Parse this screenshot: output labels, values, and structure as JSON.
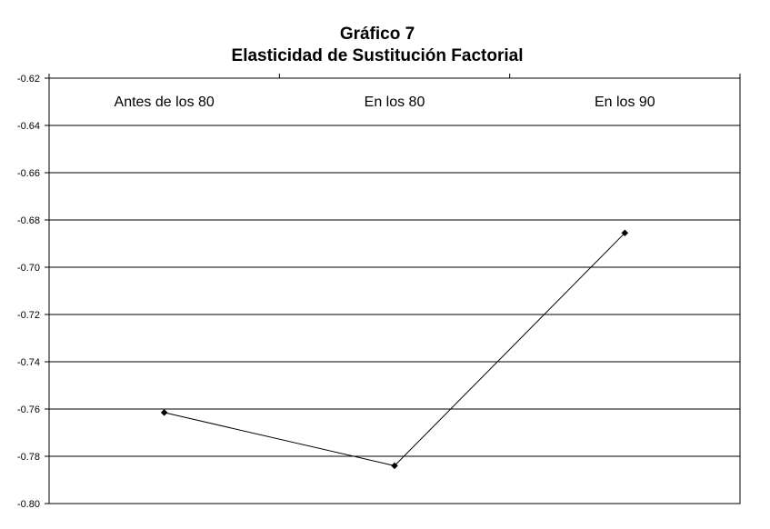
{
  "chart_data": {
    "type": "line",
    "title": "Gráfico 7",
    "subtitle": "Elasticidad de Sustitución Factorial",
    "categories": [
      "Antes de los 80",
      "En los 80",
      "En los 90"
    ],
    "series": [
      {
        "values": [
          -0.7615,
          -0.784,
          -0.6855
        ]
      }
    ],
    "ylim": [
      -0.8,
      -0.62
    ],
    "yticks": [
      -0.62,
      -0.64,
      -0.66,
      -0.68,
      -0.7,
      -0.72,
      -0.74,
      -0.76,
      -0.78,
      -0.8
    ],
    "ytick_labels": [
      "-0.62",
      "-0.64",
      "-0.66",
      "-0.68",
      "-0.70",
      "-0.72",
      "-0.74",
      "-0.76",
      "-0.78",
      "-0.80"
    ],
    "x_axis_position": "top",
    "grid": true,
    "legend": false,
    "colors": {
      "line": "#000000",
      "grid": "#000000",
      "background": "#ffffff"
    }
  }
}
